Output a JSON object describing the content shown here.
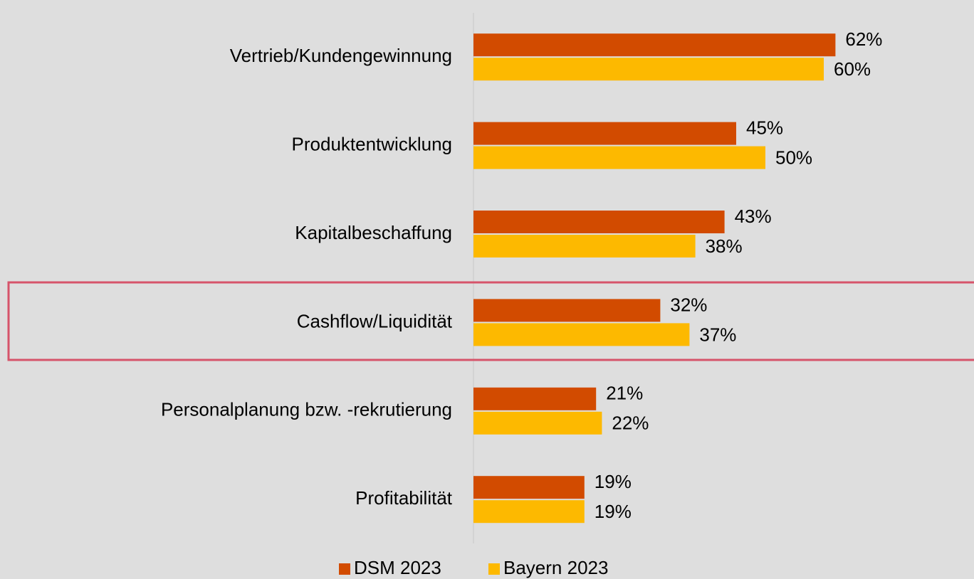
{
  "chart_data": {
    "type": "hbar",
    "categories": [
      "Vertrieb/Kundengewinnung",
      "Produktentwicklung",
      "Kapitalbeschaffung",
      "Cashflow/Liquidität",
      "Personalplanung bzw. -rekrutierung",
      "Profitabilität"
    ],
    "series": [
      {
        "name": "DSM 2023",
        "color": "#d24b00",
        "values": [
          62,
          45,
          43,
          32,
          21,
          19
        ],
        "value_labels": [
          "62%",
          "45%",
          "43%",
          "32%",
          "21%",
          "19%"
        ]
      },
      {
        "name": "Bayern 2023",
        "color": "#fdb900",
        "values": [
          60,
          50,
          38,
          37,
          22,
          19
        ],
        "value_labels": [
          "60%",
          "50%",
          "38%",
          "37%",
          "22%",
          "19%"
        ]
      }
    ],
    "xlim": [
      0,
      85
    ],
    "legend": "bottom"
  }
}
